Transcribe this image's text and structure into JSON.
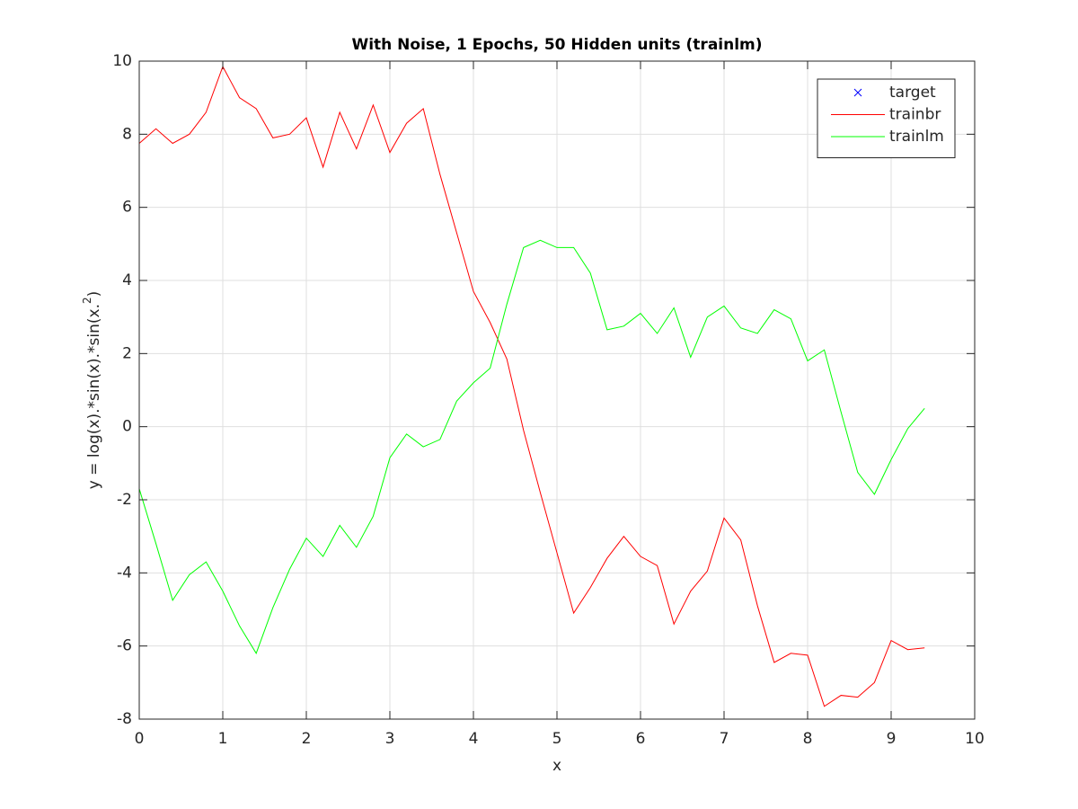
{
  "chart_data": {
    "type": "line",
    "title": "With Noise, 1 Epochs, 50 Hidden units (trainlm)",
    "xlabel": "x",
    "ylabel": [
      "y = log(x).*sin(x).*sin(x.",
      "2",
      ")"
    ],
    "x": [
      0,
      0.2,
      0.4,
      0.6,
      0.8,
      1,
      1.2,
      1.4,
      1.6,
      1.8,
      2,
      2.2,
      2.4,
      2.6,
      2.8,
      3,
      3.2,
      3.4,
      3.6,
      3.8,
      4,
      4.2,
      4.4,
      4.6,
      4.8,
      5,
      5.2,
      5.4,
      5.6,
      5.8,
      6,
      6.2,
      6.4,
      6.6,
      6.8,
      7,
      7.2,
      7.4,
      7.6,
      7.8,
      8,
      8.2,
      8.4,
      8.6,
      8.8,
      9,
      9.2,
      9.4
    ],
    "series": [
      {
        "name": "target",
        "color": "#0000ff",
        "marker": "x",
        "values": [
          null,
          null,
          null,
          null,
          null,
          null,
          null,
          null,
          null,
          null,
          null,
          null,
          null,
          null,
          null,
          null,
          null,
          null,
          null,
          null,
          null,
          null,
          null,
          null,
          null,
          null,
          null,
          null,
          null,
          null,
          null,
          null,
          null,
          null,
          null,
          null,
          null,
          null,
          null,
          null,
          null,
          null,
          null,
          null,
          null,
          null,
          null,
          null
        ]
      },
      {
        "name": "trainbr",
        "color": "#ff0000",
        "values": [
          7.75,
          8.15,
          7.75,
          8.0,
          8.6,
          9.85,
          9.0,
          8.7,
          7.9,
          8.0,
          8.45,
          7.1,
          8.6,
          7.6,
          8.8,
          7.5,
          8.3,
          8.7,
          6.9,
          5.3,
          3.7,
          2.85,
          1.85,
          -0.1,
          -1.8,
          -3.45,
          -5.1,
          -4.4,
          -3.6,
          -3.0,
          -3.55,
          -3.8,
          -5.4,
          -4.5,
          -3.95,
          -2.5,
          -3.1,
          -4.9,
          -6.45,
          -6.2,
          -6.25,
          -7.65,
          -7.35,
          -7.4,
          -7.0,
          -5.85,
          -6.1,
          -6.05
        ]
      },
      {
        "name": "trainlm",
        "color": "#00ff00",
        "values": [
          -1.7,
          -3.2,
          -4.75,
          -4.05,
          -3.7,
          -4.5,
          -5.45,
          -6.2,
          -4.95,
          -3.9,
          -3.05,
          -3.55,
          -2.7,
          -3.3,
          -2.45,
          -0.85,
          -0.2,
          -0.55,
          -0.35,
          0.7,
          1.2,
          1.6,
          3.35,
          4.9,
          5.1,
          4.9,
          4.9,
          4.2,
          2.65,
          2.75,
          3.1,
          2.55,
          3.25,
          1.9,
          3.0,
          3.3,
          2.7,
          2.55,
          3.2,
          2.95,
          1.8,
          2.1,
          0.4,
          -1.25,
          -1.85,
          -0.9,
          -0.05,
          0.5
        ]
      }
    ],
    "xlim": [
      0,
      10
    ],
    "xticks": [
      0,
      1,
      2,
      3,
      4,
      5,
      6,
      7,
      8,
      9,
      10
    ],
    "ylim": [
      -8,
      10
    ],
    "yticks": [
      -8,
      -6,
      -4,
      -2,
      0,
      2,
      4,
      6,
      8,
      10
    ],
    "grid": true,
    "legend": "northeast"
  }
}
